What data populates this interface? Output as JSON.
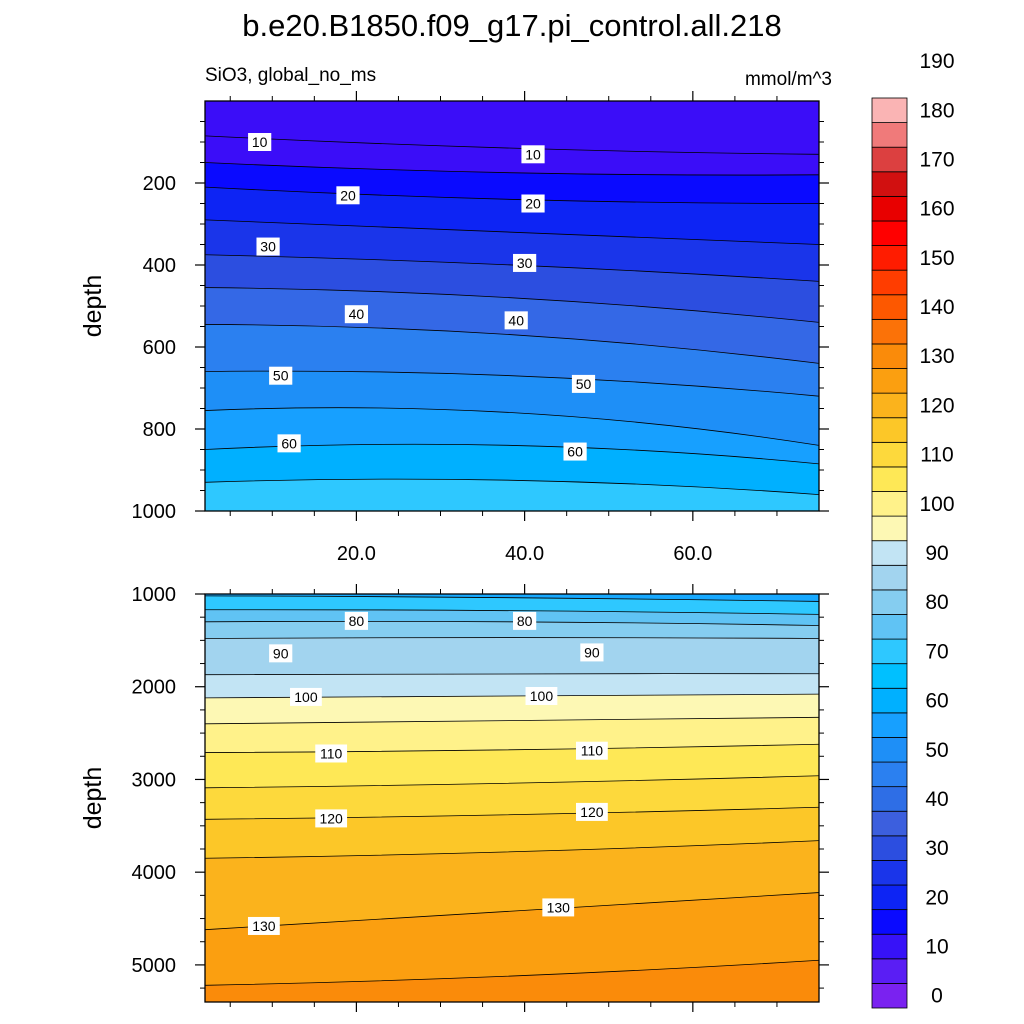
{
  "chart_data": {
    "type": "contour",
    "title": "b.e20.B1850.f09_g17.pi_control.all.218",
    "left_subtitle": "SiO3, global_no_ms",
    "right_subtitle": "mmol/m^3",
    "x_tick_labels": [
      "20.0",
      "40.0",
      "60.0"
    ],
    "x_range": [
      2,
      75
    ],
    "panels": [
      {
        "name": "upper",
        "ylabel": "depth",
        "ylim": [
          0,
          1000
        ],
        "y_ticks": [
          200,
          400,
          600,
          800,
          1000
        ],
        "y_tick_labels": [
          "200",
          "400",
          "600",
          "800",
          "1000"
        ],
        "contour_labels": [
          {
            "text": "10",
            "x": 8.5,
            "y": 100
          },
          {
            "text": "10",
            "x": 41,
            "y": 130
          },
          {
            "text": "20",
            "x": 19,
            "y": 230
          },
          {
            "text": "20",
            "x": 41,
            "y": 250
          },
          {
            "text": "30",
            "x": 9.5,
            "y": 355
          },
          {
            "text": "30",
            "x": 40,
            "y": 395
          },
          {
            "text": "40",
            "x": 20,
            "y": 520
          },
          {
            "text": "40",
            "x": 39,
            "y": 535
          },
          {
            "text": "50",
            "x": 11,
            "y": 670
          },
          {
            "text": "50",
            "x": 47,
            "y": 690
          },
          {
            "text": "60",
            "x": 12,
            "y": 835
          },
          {
            "text": "60",
            "x": 46,
            "y": 855
          }
        ]
      },
      {
        "name": "lower",
        "ylabel": "depth",
        "ylim": [
          1000,
          5400
        ],
        "y_ticks": [
          1000,
          2000,
          3000,
          4000,
          5000
        ],
        "y_tick_labels": [
          "1000",
          "2000",
          "3000",
          "4000",
          "5000"
        ],
        "contour_labels": [
          {
            "text": "80",
            "x": 20,
            "y": 1290
          },
          {
            "text": "80",
            "x": 40,
            "y": 1290
          },
          {
            "text": "90",
            "x": 11,
            "y": 1640
          },
          {
            "text": "90",
            "x": 48,
            "y": 1630
          },
          {
            "text": "100",
            "x": 14,
            "y": 2110
          },
          {
            "text": "100",
            "x": 42,
            "y": 2100
          },
          {
            "text": "110",
            "x": 17,
            "y": 2720
          },
          {
            "text": "110",
            "x": 48,
            "y": 2690
          },
          {
            "text": "120",
            "x": 17,
            "y": 3420
          },
          {
            "text": "120",
            "x": 48,
            "y": 3350
          },
          {
            "text": "130",
            "x": 9,
            "y": 4580
          },
          {
            "text": "130",
            "x": 44,
            "y": 4380
          }
        ]
      }
    ],
    "colorbar": {
      "tick_labels": [
        "0",
        "10",
        "20",
        "30",
        "40",
        "50",
        "60",
        "70",
        "80",
        "90",
        "100",
        "110",
        "120",
        "130",
        "140",
        "150",
        "160",
        "170",
        "180",
        "190"
      ],
      "colors": [
        "#7a22f0",
        "#5a1ef4",
        "#3712f8",
        "#0a0aff",
        "#0d24f4",
        "#1a35ea",
        "#2c4ee0",
        "#3c5fde",
        "#2e6ee6",
        "#2b80f0",
        "#1e8ff7",
        "#17a0ff",
        "#00b0ff",
        "#00c0ff",
        "#2ec8ff",
        "#60c3f4",
        "#85cdf0",
        "#a2d4ef",
        "#c2e4f4",
        "#fdf8b4",
        "#fff28a",
        "#fee856",
        "#fdd93c",
        "#fcc728",
        "#fbb31c",
        "#fb9f10",
        "#fa8b0a",
        "#fb7208",
        "#fd5800",
        "#ff3d00",
        "#ff1c00",
        "#ff0000",
        "#e80000",
        "#d11010",
        "#dc4040",
        "#f07a7a",
        "#fab4b4"
      ]
    }
  }
}
